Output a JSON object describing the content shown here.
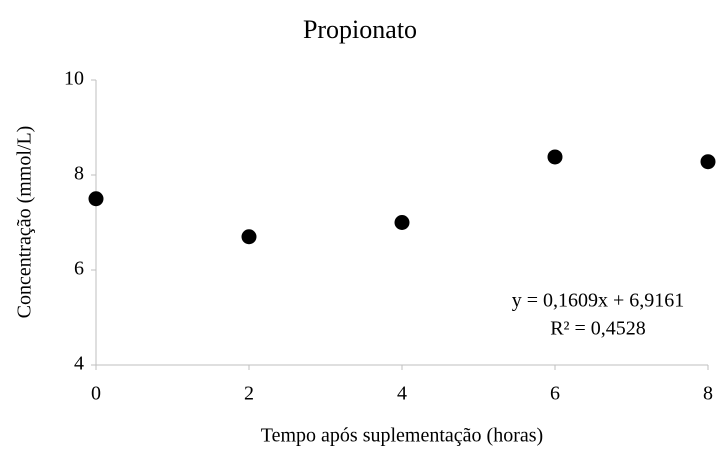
{
  "chart_data": {
    "type": "scatter",
    "title": "Propionato",
    "x_label": "Tempo após suplementação (horas)",
    "y_label": "Concentração (mmol/L)",
    "x": [
      0,
      2,
      4,
      6,
      8
    ],
    "values": [
      7.5,
      6.7,
      7.0,
      8.38,
      8.28
    ],
    "color": "#000000",
    "xlim": [
      0,
      8
    ],
    "xticks": [
      0,
      2,
      4,
      6,
      8
    ],
    "ylim": [
      4,
      10
    ],
    "yticks": [
      4,
      6,
      8,
      10
    ],
    "grid": false,
    "annotations": [
      "y = 0,1609x + 6,9161",
      "R² = 0,4528"
    ]
  }
}
